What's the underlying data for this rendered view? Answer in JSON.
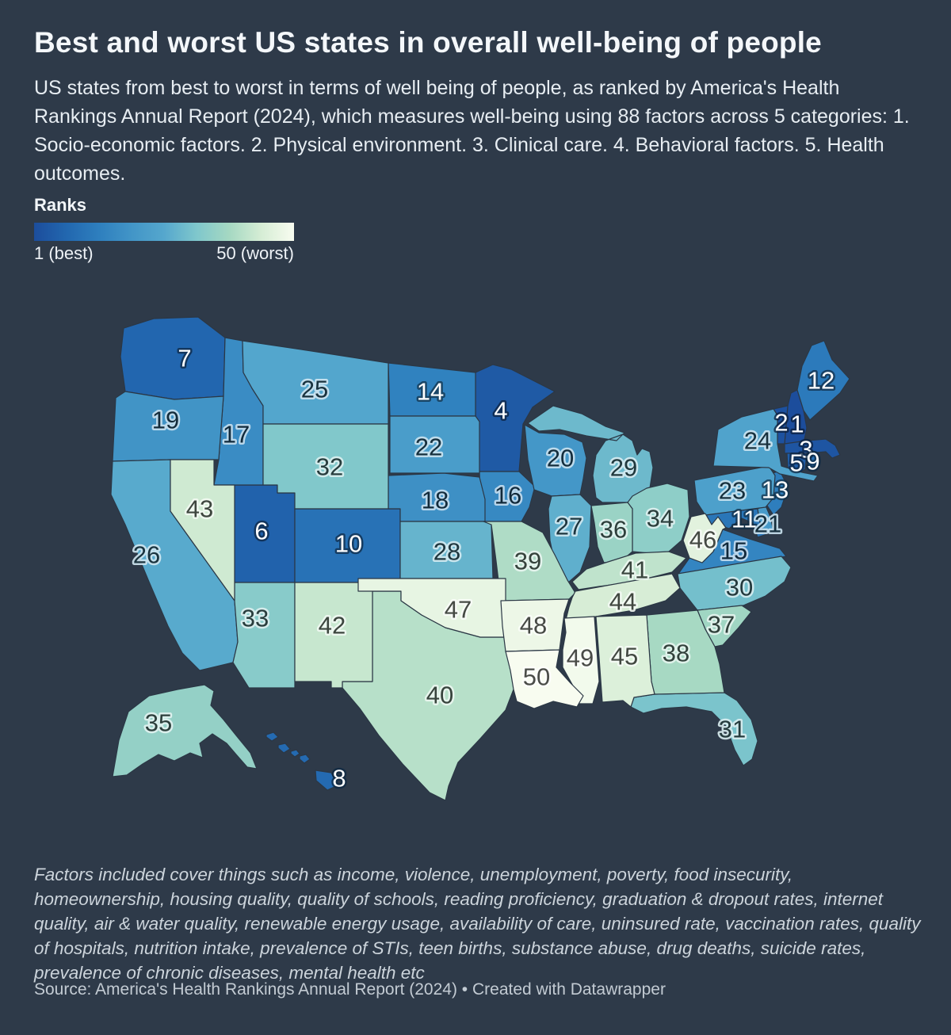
{
  "title": "Best and worst US states in overall well-being of people",
  "subtitle": "US states from best to worst in terms of well being of people, as ranked by America's Health Rankings Annual Report (2024), which measures well-being using 88 factors across 5 categories: 1. Socio-economic factors. 2. Physical environment. 3. Clinical care. 4. Behavioral factors. 5. Health outcomes.",
  "legend": {
    "label": "Ranks",
    "min_label": "1 (best)",
    "max_label": "50 (worst)",
    "gradient": [
      "#1c4d9c",
      "#2267af",
      "#2e7fbe",
      "#4295c7",
      "#55a7cd",
      "#7fc7cc",
      "#a5d8c2",
      "#d6edd5",
      "#f8fcf0"
    ]
  },
  "colors": {
    "background": "#2e3a49",
    "state_border": "#2b3745",
    "label_light": "#ffffff"
  },
  "map": {
    "rank_range": [
      1,
      50
    ],
    "states": [
      {
        "abbr": "NH",
        "name": "New Hampshire",
        "rank": 1
      },
      {
        "abbr": "VT",
        "name": "Vermont",
        "rank": 2
      },
      {
        "abbr": "MA",
        "name": "Massachusetts",
        "rank": 3
      },
      {
        "abbr": "MN",
        "name": "Minnesota",
        "rank": 4
      },
      {
        "abbr": "CT",
        "name": "Connecticut",
        "rank": 5
      },
      {
        "abbr": "UT",
        "name": "Utah",
        "rank": 6
      },
      {
        "abbr": "WA",
        "name": "Washington",
        "rank": 7
      },
      {
        "abbr": "HI",
        "name": "Hawaii",
        "rank": 8
      },
      {
        "abbr": "RI",
        "name": "Rhode Island",
        "rank": 9
      },
      {
        "abbr": "CO",
        "name": "Colorado",
        "rank": 10
      },
      {
        "abbr": "MD",
        "name": "Maryland",
        "rank": 11
      },
      {
        "abbr": "ME",
        "name": "Maine",
        "rank": 12
      },
      {
        "abbr": "NJ",
        "name": "New Jersey",
        "rank": 13
      },
      {
        "abbr": "ND",
        "name": "North Dakota",
        "rank": 14
      },
      {
        "abbr": "VA",
        "name": "Virginia",
        "rank": 15
      },
      {
        "abbr": "IA",
        "name": "Iowa",
        "rank": 16
      },
      {
        "abbr": "ID",
        "name": "Idaho",
        "rank": 17
      },
      {
        "abbr": "NE",
        "name": "Nebraska",
        "rank": 18
      },
      {
        "abbr": "OR",
        "name": "Oregon",
        "rank": 19
      },
      {
        "abbr": "WI",
        "name": "Wisconsin",
        "rank": 20
      },
      {
        "abbr": "DE",
        "name": "Delaware",
        "rank": 21
      },
      {
        "abbr": "SD",
        "name": "South Dakota",
        "rank": 22
      },
      {
        "abbr": "PA",
        "name": "Pennsylvania",
        "rank": 23
      },
      {
        "abbr": "NY",
        "name": "New York",
        "rank": 24
      },
      {
        "abbr": "MT",
        "name": "Montana",
        "rank": 25
      },
      {
        "abbr": "CA",
        "name": "California",
        "rank": 26
      },
      {
        "abbr": "IL",
        "name": "Illinois",
        "rank": 27
      },
      {
        "abbr": "KS",
        "name": "Kansas",
        "rank": 28
      },
      {
        "abbr": "MI",
        "name": "Michigan",
        "rank": 29
      },
      {
        "abbr": "NC",
        "name": "North Carolina",
        "rank": 30
      },
      {
        "abbr": "FL",
        "name": "Florida",
        "rank": 31
      },
      {
        "abbr": "WY",
        "name": "Wyoming",
        "rank": 32
      },
      {
        "abbr": "AZ",
        "name": "Arizona",
        "rank": 33
      },
      {
        "abbr": "OH",
        "name": "Ohio",
        "rank": 34
      },
      {
        "abbr": "AK",
        "name": "Alaska",
        "rank": 35
      },
      {
        "abbr": "IN",
        "name": "Indiana",
        "rank": 36
      },
      {
        "abbr": "SC",
        "name": "South Carolina",
        "rank": 37
      },
      {
        "abbr": "GA",
        "name": "Georgia",
        "rank": 38
      },
      {
        "abbr": "MO",
        "name": "Missouri",
        "rank": 39
      },
      {
        "abbr": "TX",
        "name": "Texas",
        "rank": 40
      },
      {
        "abbr": "KY",
        "name": "Kentucky",
        "rank": 41
      },
      {
        "abbr": "NM",
        "name": "New Mexico",
        "rank": 42
      },
      {
        "abbr": "NV",
        "name": "Nevada",
        "rank": 43
      },
      {
        "abbr": "TN",
        "name": "Tennessee",
        "rank": 44
      },
      {
        "abbr": "AL",
        "name": "Alabama",
        "rank": 45
      },
      {
        "abbr": "WV",
        "name": "West Virginia",
        "rank": 46
      },
      {
        "abbr": "OK",
        "name": "Oklahoma",
        "rank": 47
      },
      {
        "abbr": "AR",
        "name": "Arkansas",
        "rank": 48
      },
      {
        "abbr": "MS",
        "name": "Mississippi",
        "rank": 49
      },
      {
        "abbr": "LA",
        "name": "Louisiana",
        "rank": 50
      }
    ]
  },
  "footnote": "Factors included cover things such as income, violence, unemployment, poverty, food insecurity, homeownership, housing quality, quality of schools, reading proficiency, graduation & dropout rates, internet quality, air & water quality, renewable energy usage, availability of care, uninsured rate, vaccination rates, quality of hospitals, nutrition intake, prevalence of STIs, teen births, substance abuse, drug deaths, suicide rates, prevalence of chronic diseases, mental health etc",
  "source": {
    "text": "Source: America's Health Rankings Annual Report (2024) • Created with Datawrapper"
  }
}
